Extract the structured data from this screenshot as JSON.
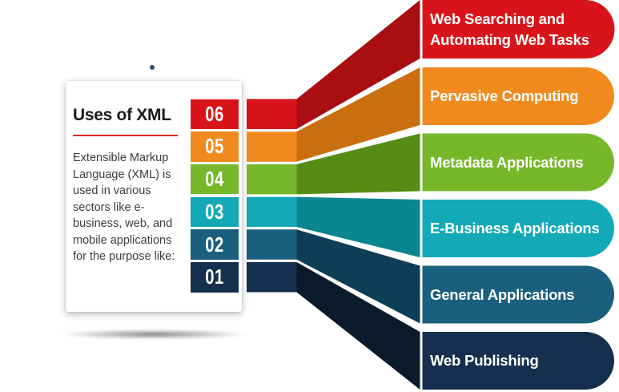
{
  "card": {
    "title": "Uses of XML",
    "description": "Extensible Markup Language (XML) is used in various sectors like e-business, web, and mobile applications for the purpose like:",
    "accent_color": "#e22a23"
  },
  "device": {
    "camera_dot_color": "#2d4d6d"
  },
  "items": [
    {
      "number": "06",
      "label": "Web Searching and Automating Web Tasks",
      "color": "#d8141a",
      "fold_color": "#a90f12"
    },
    {
      "number": "05",
      "label": "Pervasive Computing",
      "color": "#f18a1e",
      "fold_color": "#c96f10"
    },
    {
      "number": "04",
      "label": "Metadata Applications",
      "color": "#76b82a",
      "fold_color": "#568c13"
    },
    {
      "number": "03",
      "label": "E-Business Applications",
      "color": "#13a9b6",
      "fold_color": "#0b8591"
    },
    {
      "number": "02",
      "label": "General Applications",
      "color": "#1a5f7e",
      "fold_color": "#0e3e55"
    },
    {
      "number": "01",
      "label": "Web Publishing",
      "color": "#15304e",
      "fold_color": "#0b1a2b"
    }
  ]
}
